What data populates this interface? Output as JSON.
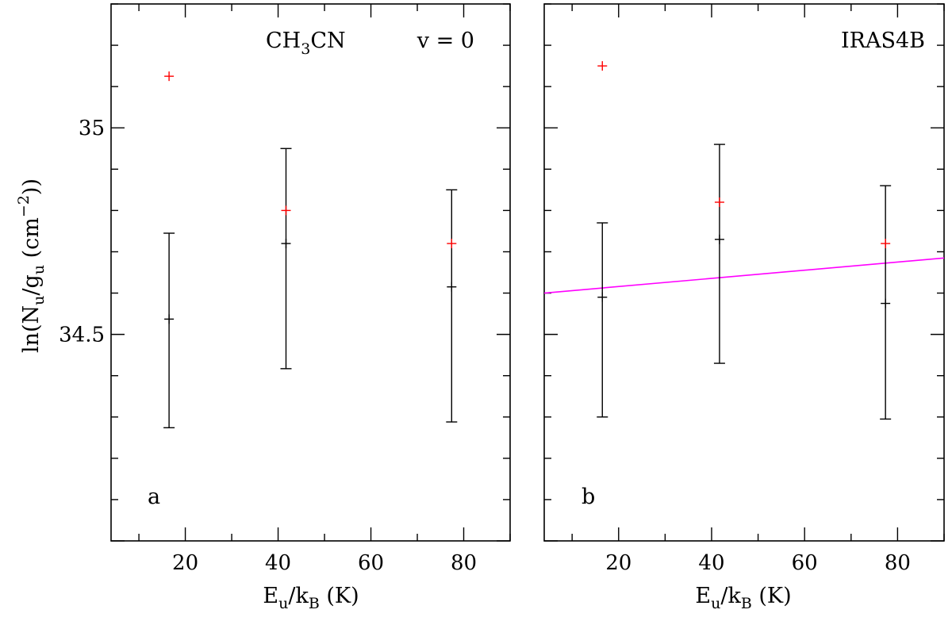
{
  "figure": {
    "ylabel_parts": {
      "pre": "ln(N",
      "s1": "u",
      "mid1": "/g",
      "s2": "u",
      "mid2": " (cm",
      "sup": "−2",
      "post": "))"
    },
    "xlabel_parts": {
      "pre": "E",
      "s1": "u",
      "mid": "/k",
      "s2": "B",
      "post": " (K)"
    }
  },
  "chart_data": [
    {
      "type": "scatter",
      "panel_label": "a",
      "annotation_molecule": {
        "pre": "CH",
        "sub": "3",
        "post": "CN"
      },
      "annotation_state": "v = 0",
      "xlim": [
        4,
        90
      ],
      "ylim": [
        34.0,
        35.3
      ],
      "xticks": [
        20,
        40,
        60,
        80
      ],
      "yticks": [
        34.5,
        35
      ],
      "xlabel": "E_u/k_B (K)",
      "ylabel": "ln(N_u/g_u (cm^-2))",
      "grid": false,
      "series": [
        {
          "color": "#000000",
          "marker": "+",
          "points": [
            {
              "x": 16.5,
              "y": 34.537,
              "err_low": 34.274,
              "err_high": 34.745
            },
            {
              "x": 41.7,
              "y": 34.72,
              "err_low": 34.417,
              "err_high": 34.95
            },
            {
              "x": 77.4,
              "y": 34.615,
              "err_low": 34.288,
              "err_high": 34.85
            }
          ]
        },
        {
          "color": "#ff0000",
          "marker": "+",
          "points": [
            {
              "x": 16.5,
              "y": 35.125
            },
            {
              "x": 41.7,
              "y": 34.8
            },
            {
              "x": 77.4,
              "y": 34.72
            }
          ]
        }
      ]
    },
    {
      "type": "scatter",
      "panel_label": "b",
      "annotation_title": "IRAS4B",
      "xlim": [
        4,
        90
      ],
      "ylim": [
        34.0,
        35.3
      ],
      "xticks": [
        20,
        40,
        60,
        80
      ],
      "yticks": [
        34.5,
        35
      ],
      "xlabel": "E_u/k_B (K)",
      "grid": false,
      "series": [
        {
          "color": "#000000",
          "marker": "+",
          "points": [
            {
              "x": 16.5,
              "y": 34.59,
              "err_low": 34.3,
              "err_high": 34.77
            },
            {
              "x": 41.7,
              "y": 34.73,
              "err_low": 34.43,
              "err_high": 34.96
            },
            {
              "x": 77.4,
              "y": 34.575,
              "err_low": 34.295,
              "err_high": 34.86
            }
          ]
        },
        {
          "color": "#ff0000",
          "marker": "+",
          "points": [
            {
              "x": 16.5,
              "y": 35.15
            },
            {
              "x": 41.7,
              "y": 34.82
            },
            {
              "x": 77.4,
              "y": 34.72
            }
          ]
        }
      ],
      "fit_line": {
        "color": "#ff00ff",
        "x": [
          4,
          90
        ],
        "y": [
          34.6,
          34.685
        ]
      }
    }
  ]
}
